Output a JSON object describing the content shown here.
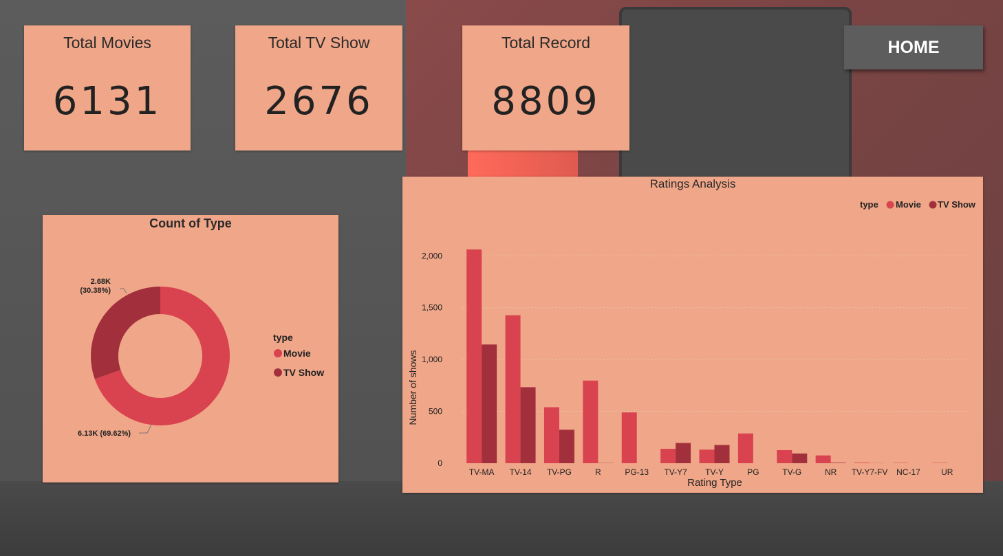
{
  "kpis": [
    {
      "title": "Total Movies",
      "value": "6131"
    },
    {
      "title": "Total TV Show",
      "value": "2676"
    },
    {
      "title": "Total Record",
      "value": "8809"
    }
  ],
  "home_button": {
    "label": "HOME"
  },
  "colors": {
    "card_bg": "#f0a688",
    "movie": "#d9434f",
    "tv_show": "#a2303c"
  },
  "donut": {
    "title": "Count of Type",
    "legend_title": "type",
    "labels": {
      "tv_show_line1": "2.68K",
      "tv_show_line2": "(30.38%)",
      "movie": "6.13K (69.62%)"
    }
  },
  "bar": {
    "title": "Ratings Analysis",
    "legend_title": "type"
  },
  "chart_data": [
    {
      "type": "pie",
      "title": "Count of Type",
      "legend_title": "type",
      "categories": [
        "Movie",
        "TV Show"
      ],
      "values": [
        6131,
        2676
      ],
      "percentages": [
        69.62,
        30.38
      ]
    },
    {
      "type": "bar",
      "title": "Ratings Analysis",
      "xlabel": "Rating Type",
      "ylabel": "Number of shows",
      "legend_title": "type",
      "legend_position": "top-right",
      "categories": [
        "TV-MA",
        "TV-14",
        "TV-PG",
        "R",
        "PG-13",
        "TV-Y7",
        "TV-Y",
        "PG",
        "TV-G",
        "NR",
        "TV-Y7-FV",
        "NC-17",
        "UR"
      ],
      "series": [
        {
          "name": "Movie",
          "values": [
            2062,
            1427,
            540,
            797,
            490,
            139,
            131,
            287,
            126,
            75,
            5,
            3,
            3
          ]
        },
        {
          "name": "TV Show",
          "values": [
            1145,
            733,
            323,
            2,
            0,
            195,
            176,
            0,
            94,
            5,
            1,
            0,
            0
          ]
        }
      ],
      "ylim": [
        0,
        2300
      ],
      "yticks": [
        "0",
        "500",
        "1,000",
        "1,500",
        "2,000"
      ],
      "ytick_values": [
        0,
        500,
        1000,
        1500,
        2000
      ],
      "grid": true
    }
  ]
}
